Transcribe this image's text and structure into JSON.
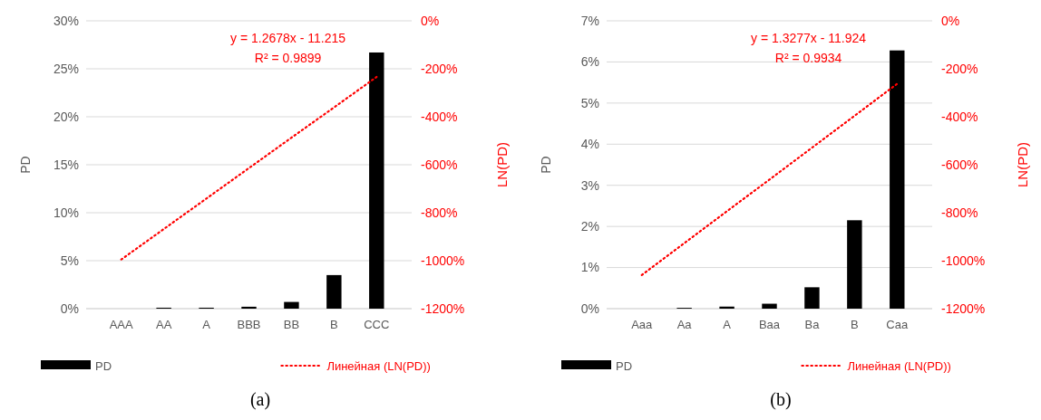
{
  "chart_data": [
    {
      "type": "bar",
      "categories": [
        "AAA",
        "AA",
        "A",
        "BBB",
        "BB",
        "B",
        "CCC"
      ],
      "series": [
        {
          "name": "PD",
          "color": "#000000",
          "values": [
            0,
            0.1,
            0.1,
            0.2,
            0.7,
            3.5,
            26.7
          ]
        },
        {
          "name": "Линейная (LN(PD))",
          "type": "line",
          "axis": "y2",
          "color": "#ff0000",
          "line_style": "dotted",
          "values": [
            -995,
            -868,
            -741,
            -614,
            -487,
            -361,
            -234
          ]
        }
      ],
      "ylabel": "PD",
      "y2label": "LN(PD)",
      "ylim": [
        0,
        30
      ],
      "yticks": [
        {
          "value": 0,
          "label": "0%"
        },
        {
          "value": 5,
          "label": "5%"
        },
        {
          "value": 10,
          "label": "10%"
        },
        {
          "value": 15,
          "label": "15%"
        },
        {
          "value": 20,
          "label": "20%"
        },
        {
          "value": 25,
          "label": "25%"
        },
        {
          "value": 30,
          "label": "30%"
        }
      ],
      "y2lim": [
        -1200,
        0
      ],
      "y2ticks": [
        {
          "value": -1200,
          "label": "-1200%"
        },
        {
          "value": -1000,
          "label": "-1000%"
        },
        {
          "value": -800,
          "label": "-800%"
        },
        {
          "value": -600,
          "label": "-600%"
        },
        {
          "value": -400,
          "label": "-400%"
        },
        {
          "value": -200,
          "label": "-200%"
        },
        {
          "value": 0,
          "label": "0%"
        }
      ],
      "grid": "y",
      "legend": "bottom",
      "annotations": [
        "y = 1.2678x - 11.215",
        "R² = 0.9899",
        "(a)"
      ]
    },
    {
      "type": "bar",
      "categories": [
        "Aaa",
        "Aa",
        "A",
        "Baa",
        "Ba",
        "B",
        "Caa"
      ],
      "series": [
        {
          "name": "PD",
          "color": "#000000",
          "values": [
            0,
            0.02,
            0.05,
            0.12,
            0.52,
            2.15,
            6.28
          ]
        },
        {
          "name": "Линейная (LN(PD))",
          "type": "line",
          "axis": "y2",
          "color": "#ff0000",
          "line_style": "dotted",
          "values": [
            -1060,
            -927,
            -794,
            -662,
            -529,
            -396,
            -263
          ]
        }
      ],
      "ylabel": "PD",
      "y2label": "LN(PD)",
      "ylim": [
        0,
        7
      ],
      "yticks": [
        {
          "value": 0,
          "label": "0%"
        },
        {
          "value": 1,
          "label": "1%"
        },
        {
          "value": 2,
          "label": "2%"
        },
        {
          "value": 3,
          "label": "3%"
        },
        {
          "value": 4,
          "label": "4%"
        },
        {
          "value": 5,
          "label": "5%"
        },
        {
          "value": 6,
          "label": "6%"
        },
        {
          "value": 7,
          "label": "7%"
        }
      ],
      "y2lim": [
        -1200,
        0
      ],
      "y2ticks": [
        {
          "value": -1200,
          "label": "-1200%"
        },
        {
          "value": -1000,
          "label": "-1000%"
        },
        {
          "value": -800,
          "label": "-800%"
        },
        {
          "value": -600,
          "label": "-600%"
        },
        {
          "value": -400,
          "label": "-400%"
        },
        {
          "value": -200,
          "label": "-200%"
        },
        {
          "value": 0,
          "label": "0%"
        }
      ],
      "grid": "y",
      "legend": "bottom",
      "annotations": [
        "y = 1.3277x - 11.924",
        "R² = 0.9934",
        "(b)"
      ]
    }
  ]
}
